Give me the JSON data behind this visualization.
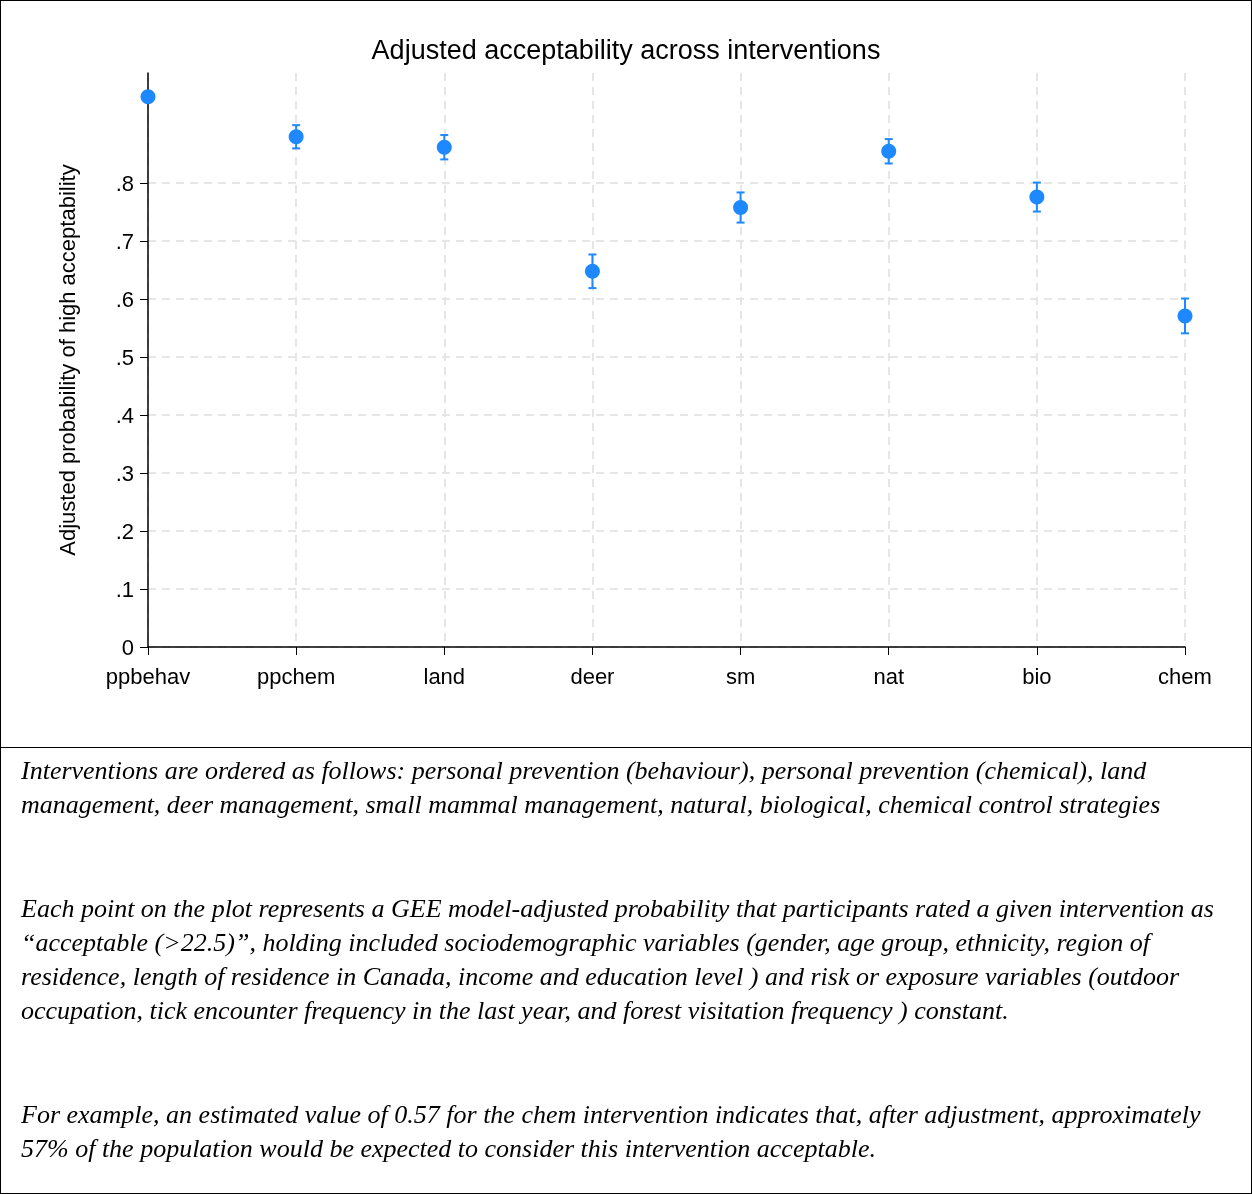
{
  "chart_data": {
    "type": "scatter",
    "title": "Adjusted acceptability across interventions",
    "ylabel": "Adjusted probability of high acceptability",
    "categories": [
      "ppbehav",
      "ppchem",
      "land",
      "deer",
      "sm",
      "nat",
      "bio",
      "chem"
    ],
    "values": [
      0.949,
      0.88,
      0.862,
      0.648,
      0.758,
      0.855,
      0.776,
      0.571
    ],
    "errors": [
      0.006,
      0.02,
      0.021,
      0.029,
      0.026,
      0.021,
      0.025,
      0.03
    ],
    "color": "#1e88ff",
    "marker": "circle",
    "ylim": [
      0,
      0.99
    ],
    "yticks": [
      0,
      {
        "value": 0.1,
        "label": ".1"
      },
      {
        "value": 0.2,
        "label": ".2"
      },
      {
        "value": 0.3,
        "label": ".3"
      },
      {
        "value": 0.4,
        "label": ".4"
      },
      {
        "value": 0.5,
        "label": ".5"
      },
      {
        "value": 0.6,
        "label": ".6"
      },
      {
        "value": 0.7,
        "label": ".7"
      },
      {
        "value": 0.8,
        "label": ".8"
      }
    ],
    "grid": true,
    "annotations": [
      "Interventions are ordered as follows: personal prevention (behaviour), personal prevention (chemical), land management, deer management, small mammal management, natural, biological, chemical control strategies",
      "Each point on the plot represents a GEE model-adjusted probability that participants rated a given intervention as “acceptable (>22.5)”, holding included sociodemographic variables (gender, age group, ethnicity, region of residence, length of residence in Canada, income and education level ) and risk or exposure variables (outdoor occupation, tick encounter frequency in the last year, and forest visitation frequency ) constant.",
      "For example, an estimated value of 0.57 for the chem intervention indicates that, after adjustment, approximately 57% of the population would be expected to consider this intervention acceptable."
    ]
  }
}
